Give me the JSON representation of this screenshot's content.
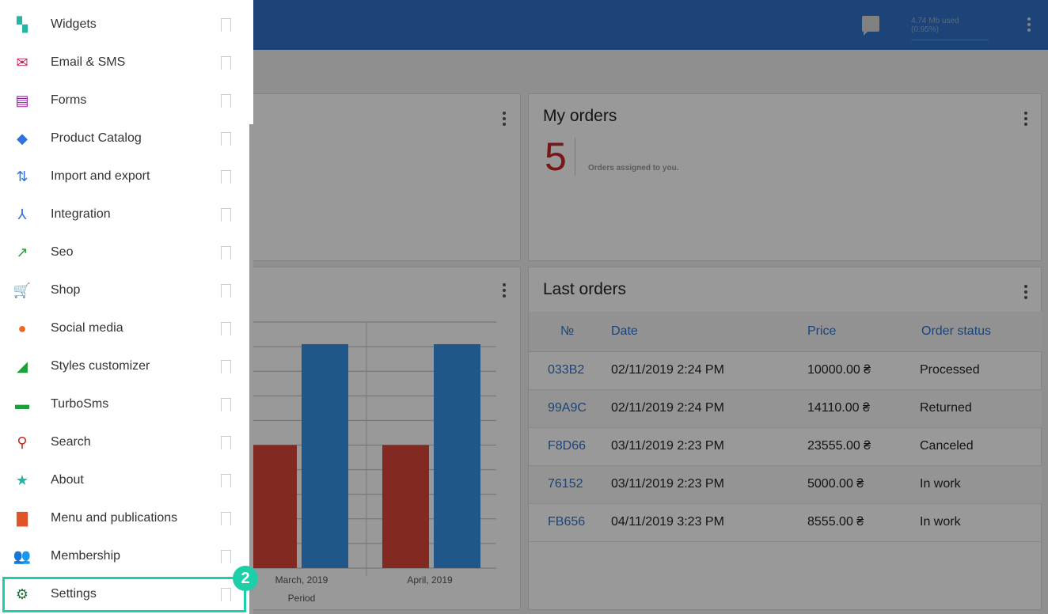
{
  "header": {
    "storage": "4.74 Mb used (0.95%)",
    "storage_fraction": 0.0095,
    "icons": [
      "chat-icon",
      "more-vert-icon"
    ]
  },
  "sidebar": {
    "items": [
      {
        "label": "Widgets",
        "icon": "widgets-icon",
        "color": "#26b5a5"
      },
      {
        "label": "Email & SMS",
        "icon": "email-icon",
        "color": "#c2185b"
      },
      {
        "label": "Forms",
        "icon": "clipboard-icon",
        "color": "#9c1aa6"
      },
      {
        "label": "Product Catalog",
        "icon": "tag-icon",
        "color": "#2f72e0"
      },
      {
        "label": "Import and export",
        "icon": "import-export-icon",
        "color": "#2f72e0"
      },
      {
        "label": "Integration",
        "icon": "integration-icon",
        "color": "#2f72e0"
      },
      {
        "label": "Seo",
        "icon": "trending-up-icon",
        "color": "#2e9e3e"
      },
      {
        "label": "Shop",
        "icon": "cart-icon",
        "color": "#2f72e0"
      },
      {
        "label": "Social media",
        "icon": "globe-icon",
        "color": "#e86a1c"
      },
      {
        "label": "Styles customizer",
        "icon": "styles-icon",
        "color": "#1f9e3a"
      },
      {
        "label": "TurboSms",
        "icon": "sms-icon",
        "color": "#1f9e3a"
      },
      {
        "label": "Search",
        "icon": "search-icon",
        "color": "#c62828"
      },
      {
        "label": "About",
        "icon": "star-icon",
        "color": "#26b5a5"
      },
      {
        "label": "Menu and publications",
        "icon": "document-icon",
        "color": "#e0542a"
      },
      {
        "label": "Membership",
        "icon": "people-icon",
        "color": "#e0542a"
      },
      {
        "label": "Settings",
        "icon": "gear-icon",
        "color": "#1e6e3a"
      }
    ],
    "highlight_badge": "2"
  },
  "my_orders": {
    "title": "My orders",
    "count": "5",
    "caption": "Orders assigned to you."
  },
  "last_orders": {
    "title": "Last orders",
    "columns": [
      "№",
      "Date",
      "Price",
      "Order status"
    ],
    "rows": [
      [
        "033B2",
        "02/11/2019 2:24 PM",
        "10000.00 ₴",
        "Processed"
      ],
      [
        "99A9C",
        "02/11/2019 2:24 PM",
        "14110.00 ₴",
        "Returned"
      ],
      [
        "F8D66",
        "03/11/2019 2:23 PM",
        "23555.00 ₴",
        "Canceled"
      ],
      [
        "76152",
        "03/11/2019 2:23 PM",
        "5000.00 ₴",
        "In work"
      ],
      [
        "FB656",
        "04/11/2019 3:23 PM",
        "8555.00 ₴",
        "In work"
      ]
    ]
  },
  "chart_data": {
    "type": "bar",
    "categories": [
      "March, 2019",
      "April, 2019"
    ],
    "xlabel": "Period",
    "ylim": [
      0,
      10
    ],
    "grid": true,
    "series": [
      {
        "color": "#d9463a",
        "values": [
          5,
          5
        ]
      },
      {
        "color": "#3592e6",
        "values": [
          9.1,
          9.1
        ]
      }
    ]
  }
}
